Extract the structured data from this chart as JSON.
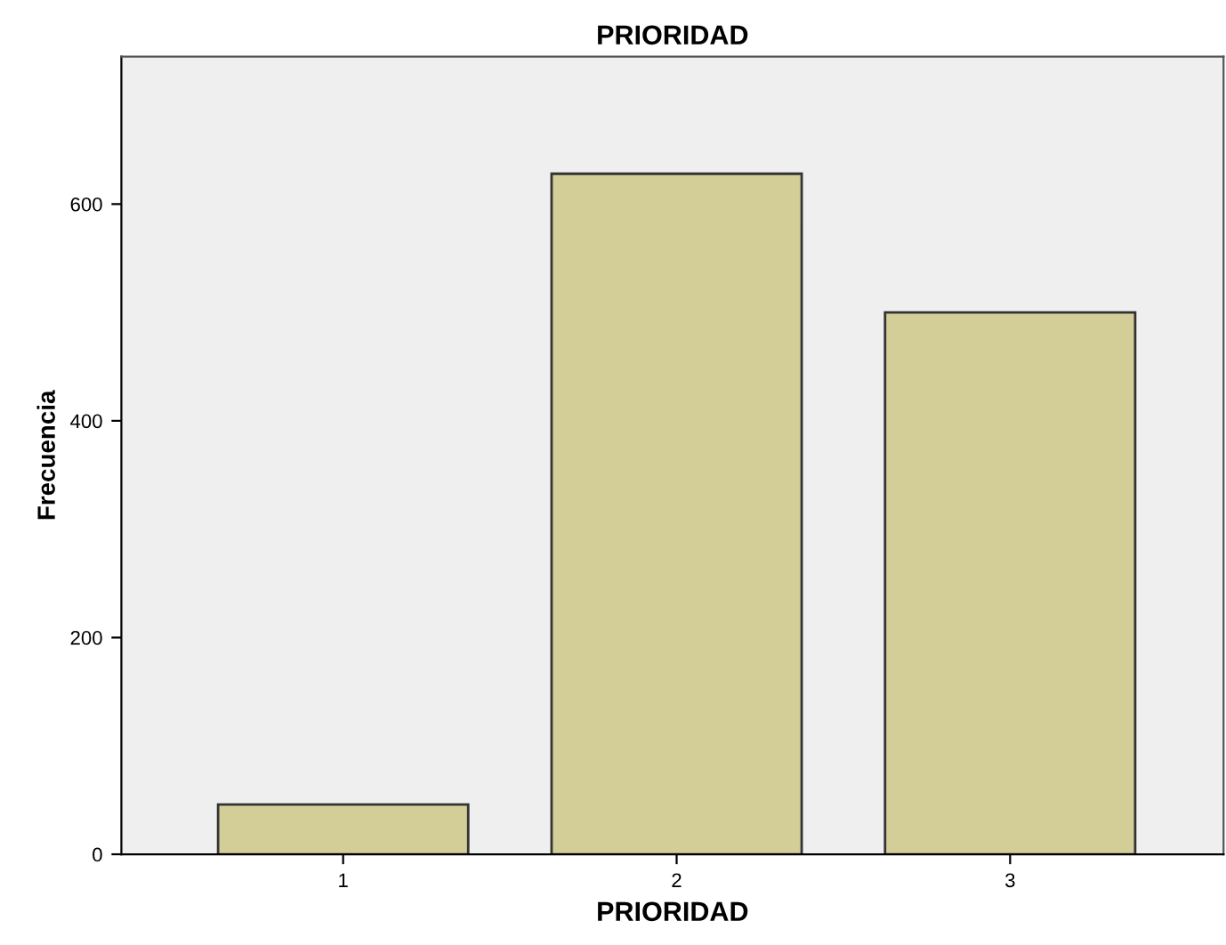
{
  "chart_data": {
    "type": "bar",
    "title": "PRIORIDAD",
    "xlabel": "PRIORIDAD",
    "ylabel": "Frecuencia",
    "categories": [
      "1",
      "2",
      "3"
    ],
    "values": [
      46,
      628,
      500
    ],
    "color": "#d3ce97",
    "ylim": [
      0,
      736
    ],
    "yticks": [
      0,
      200,
      400,
      600
    ],
    "grid": false,
    "legend": false
  }
}
